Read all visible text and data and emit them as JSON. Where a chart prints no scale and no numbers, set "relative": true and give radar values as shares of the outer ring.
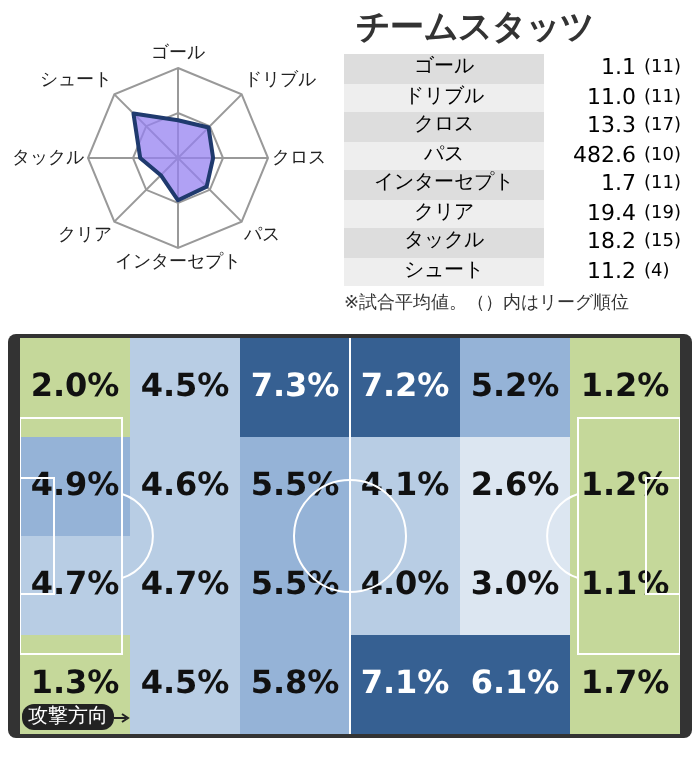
{
  "chart_data": [
    {
      "type": "radar",
      "relative": true,
      "categories": [
        "ゴール",
        "ドリブル",
        "クロス",
        "パス",
        "インターセプト",
        "クリア",
        "タックル",
        "シュート"
      ],
      "series": [
        {
          "color": "#1f3a6e",
          "values": [
            0.42,
            0.48,
            0.39,
            0.45,
            0.47,
            0.27,
            0.42,
            0.7
          ]
        }
      ],
      "grid": true,
      "legend": false,
      "marker": "none"
    },
    {
      "type": "other",
      "title": "チームスタッツ",
      "categories": [
        "ゴール",
        "ドリブル",
        "クロス",
        "パス",
        "インターセプト",
        "クリア",
        "タックル",
        "シュート"
      ],
      "series": [
        {
          "values": [
            1.1,
            11.0,
            13.3,
            482.6,
            1.7,
            19.4,
            18.2,
            11.2
          ],
          "value_labels": [
            "1.1",
            "11.0",
            "13.3",
            "482.6",
            "1.7",
            "19.4",
            "18.2",
            "11.2"
          ]
        },
        {
          "values": [
            11,
            11,
            17,
            10,
            11,
            19,
            15,
            4
          ],
          "value_labels": [
            "(11)",
            "(11)",
            "(17)",
            "(10)",
            "(11)",
            "(19)",
            "(15)",
            "(4)"
          ]
        }
      ],
      "annotations": [
        "※試合平均値。（）内はリーグ順位"
      ]
    },
    {
      "type": "heatmap",
      "categories": [
        null,
        null,
        null,
        null,
        null,
        null
      ],
      "y_categories": [
        null,
        null,
        null,
        null
      ],
      "cells": [
        [
          2.0,
          4.5,
          7.3,
          7.2,
          5.2,
          1.2
        ],
        [
          4.9,
          4.6,
          5.5,
          4.1,
          2.6,
          1.2
        ],
        [
          4.7,
          4.7,
          5.5,
          4.0,
          3.0,
          1.1
        ],
        [
          1.3,
          4.5,
          5.8,
          7.1,
          6.1,
          1.7
        ]
      ],
      "cell_labels": [
        [
          "2.0%",
          "4.5%",
          "7.3%",
          "7.2%",
          "5.2%",
          "1.2%"
        ],
        [
          "4.9%",
          "4.6%",
          "5.5%",
          "4.1%",
          "2.6%",
          "1.2%"
        ],
        [
          "4.7%",
          "4.7%",
          "5.5%",
          "4.0%",
          "3.0%",
          "1.1%"
        ],
        [
          "1.3%",
          "4.5%",
          "5.8%",
          "7.1%",
          "6.1%",
          "1.7%"
        ]
      ],
      "colors": [
        "#c5d89a",
        "#dce6f1",
        "#b8cde4",
        "#95b3d7",
        "#366092"
      ],
      "tick_labels": false,
      "annotations": [
        "攻撃方向"
      ]
    }
  ]
}
